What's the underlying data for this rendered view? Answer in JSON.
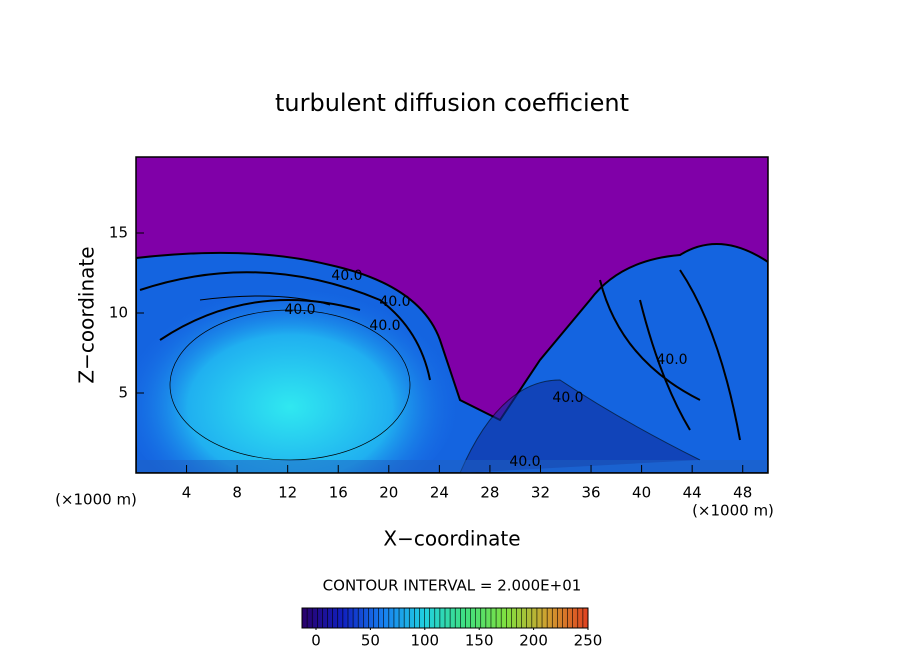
{
  "chart_data": {
    "type": "contour",
    "title": "turbulent diffusion coefficient",
    "xlabel": "X−coordinate",
    "ylabel": "Z−coordinate",
    "x_unit": "(×1000 m)",
    "y_unit": "(×1000 m)",
    "xlim": [
      0,
      50
    ],
    "xticks": [
      4,
      8,
      12,
      16,
      20,
      24,
      28,
      32,
      36,
      40,
      44,
      48
    ],
    "ylim": [
      0,
      19.75
    ],
    "yticks": [
      5,
      10,
      15
    ],
    "contour_labels": [
      "40.0",
      "40.0",
      "40.0",
      "40.0",
      "40.0",
      "40.0",
      "40.0"
    ],
    "contour_interval_label": "CONTOUR INTERVAL = 2.000E+01",
    "colorbar": {
      "lim": [
        0,
        250
      ],
      "ticks": [
        0,
        50,
        100,
        150,
        200,
        250
      ],
      "colors": [
        "#2a006a",
        "#1020c0",
        "#1880f0",
        "#20d0e0",
        "#40e080",
        "#80e040",
        "#d0a030",
        "#e04020"
      ]
    }
  }
}
